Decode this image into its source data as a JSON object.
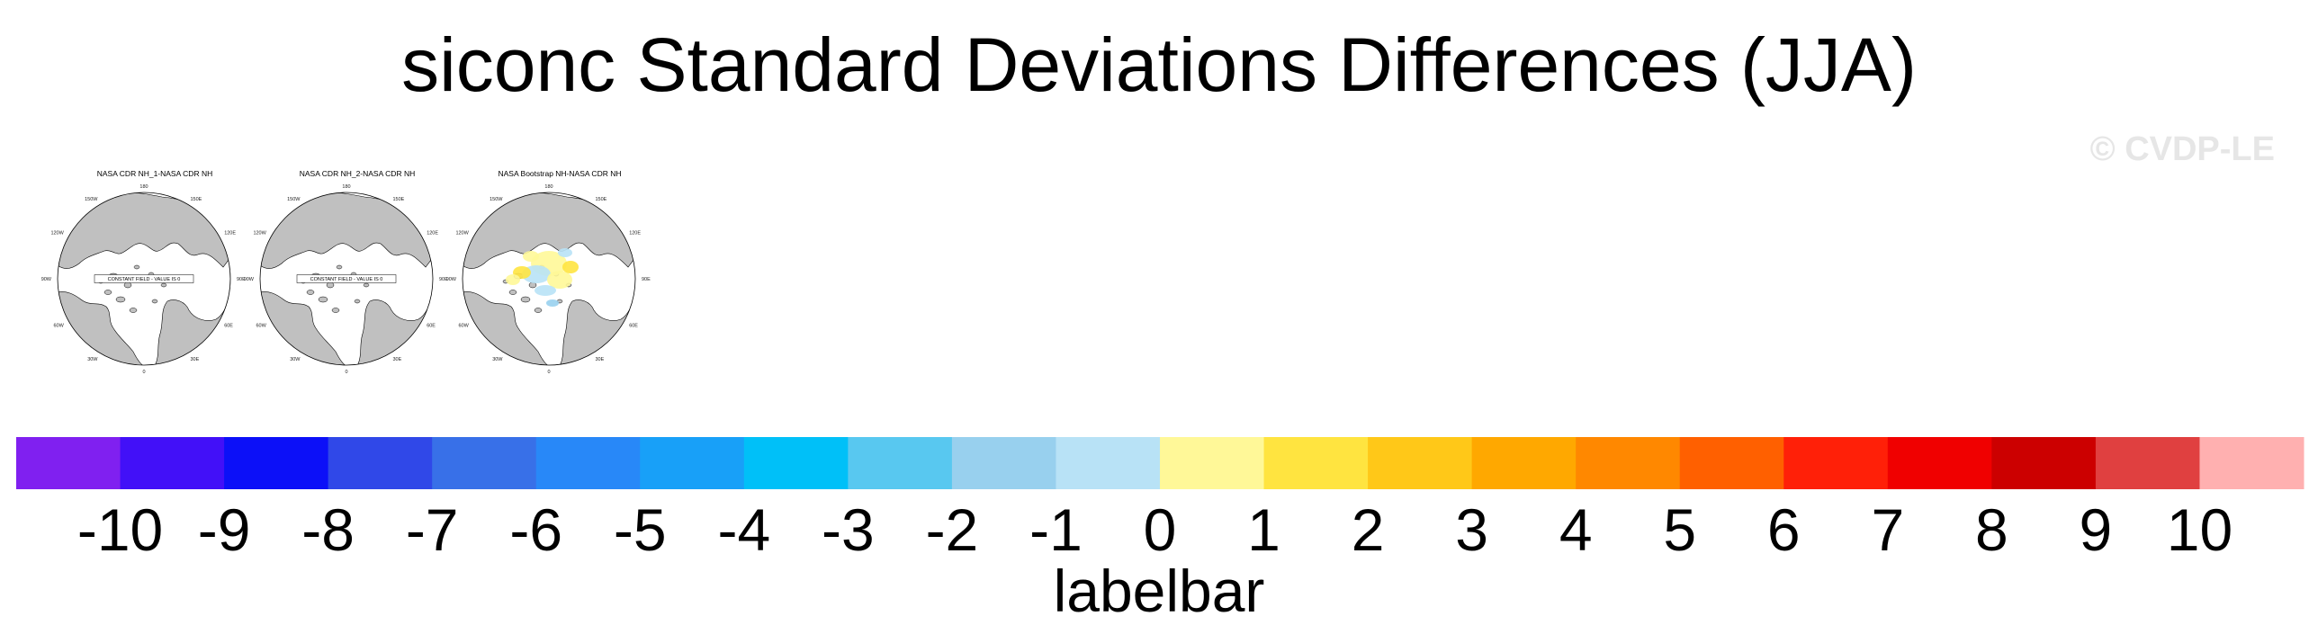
{
  "title": "siconc Standard Deviations Differences (JJA)",
  "credit": "© CVDP-LE",
  "panels": [
    {
      "title": "NASA CDR NH_1-NASA CDR NH",
      "constant_field": true,
      "constant_label": "CONSTANT FIELD - VALUE IS 0"
    },
    {
      "title": "NASA CDR NH_2-NASA CDR NH",
      "constant_field": true,
      "constant_label": "CONSTANT FIELD - VALUE IS 0"
    },
    {
      "title": "NASA Bootstrap NH-NASA CDR NH",
      "constant_field": false,
      "constant_label": ""
    }
  ],
  "longitude_labels": [
    "180",
    "150E",
    "120E",
    "90E",
    "60E",
    "30E",
    "0",
    "30W",
    "60W",
    "90W",
    "120W",
    "150W"
  ],
  "colorbar": {
    "label": "labelbar",
    "levels": [
      "-10",
      "-9",
      "-8",
      "-7",
      "-6",
      "-5",
      "-4",
      "-3",
      "-2",
      "-1",
      "0",
      "1",
      "2",
      "3",
      "4",
      "5",
      "6",
      "7",
      "8",
      "9",
      "10"
    ],
    "colors": [
      "#8020f0",
      "#4210f8",
      "#0c10f8",
      "#3048e8",
      "#3870e8",
      "#2888f8",
      "#18a0f8",
      "#00c0f8",
      "#58c8f0",
      "#98d0ee",
      "#b8e2f6",
      "#fff898",
      "#ffe440",
      "#ffc818",
      "#ffa800",
      "#ff8800",
      "#ff6000",
      "#ff2008",
      "#f00000",
      "#cc0000",
      "#e04040",
      "#ffb0b0"
    ]
  },
  "colors": {
    "land": "#c0c0c0",
    "ocean": "#ffffff",
    "coast": "#000000"
  }
}
